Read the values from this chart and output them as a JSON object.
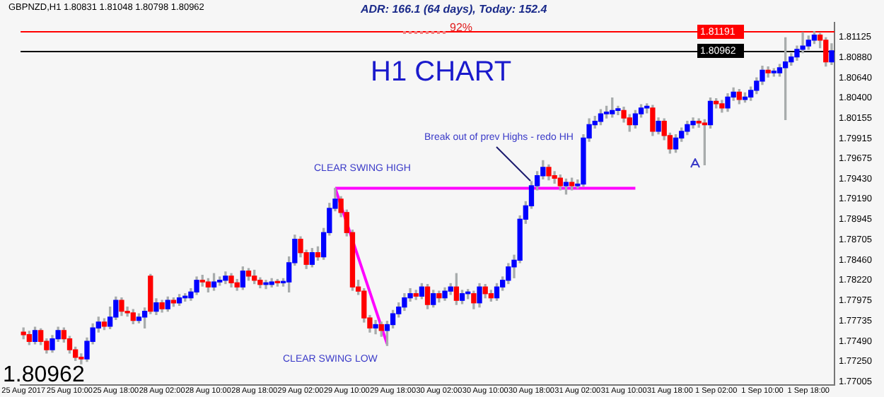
{
  "chart_data": {
    "type": "candlestick",
    "title": "H1 CHART",
    "subtitle": "GBPNZD,H1  1.80831 1.81048 1.80798 1.80962",
    "annotations": [
      "ADR: 166.1 (64 days), Today: 152.4",
      "92%",
      "1.80962",
      "CLEAR SWING HIGH",
      "CLEAR SWING LOW",
      "Break out of prev Highs - redo HH"
    ],
    "categories": [
      "25 Aug 2017",
      null,
      null,
      null,
      null,
      null,
      null,
      null,
      "25 Aug 10:00",
      null,
      null,
      null,
      null,
      null,
      null,
      null,
      "25 Aug 18:00",
      null,
      null,
      null,
      null,
      null,
      null,
      null,
      "28 Aug 02:00",
      null,
      null,
      null,
      null,
      null,
      null,
      null,
      "28 Aug 10:00",
      null,
      null,
      null,
      null,
      null,
      null,
      null,
      "28 Aug 18:00",
      null,
      null,
      null,
      null,
      null,
      null,
      null,
      "29 Aug 02:00",
      null,
      null,
      null,
      null,
      null,
      null,
      null,
      "29 Aug 10:00",
      null,
      null,
      null,
      null,
      null,
      null,
      null,
      "29 Aug 18:00",
      null,
      null,
      null,
      null,
      null,
      null,
      null,
      "30 Aug 02:00",
      null,
      null,
      null,
      null,
      null,
      null,
      null,
      "30 Aug 10:00",
      null,
      null,
      null,
      null,
      null,
      null,
      null,
      "30 Aug 18:00",
      null,
      null,
      null,
      null,
      null,
      null,
      null,
      "31 Aug 02:00",
      null,
      null,
      null,
      null,
      null,
      null,
      null,
      "31 Aug 10:00",
      null,
      null,
      null,
      null,
      null,
      null,
      null,
      "31 Aug 18:00",
      null,
      null,
      null,
      null,
      null,
      null,
      null,
      "1 Sep 02:00",
      null,
      null,
      null,
      null,
      null,
      null,
      null,
      "1 Sep 10:00",
      null,
      null,
      null,
      null,
      null,
      null,
      null,
      "1 Sep 18:00",
      null,
      null,
      null,
      null
    ],
    "ohlc": [
      [
        1.776,
        1.7765,
        1.7752,
        1.7757
      ],
      [
        1.7757,
        1.7761,
        1.7745,
        1.7749
      ],
      [
        1.7749,
        1.7766,
        1.7746,
        1.7762
      ],
      [
        1.7762,
        1.7764,
        1.7745,
        1.7749
      ],
      [
        1.7749,
        1.7752,
        1.7735,
        1.7739
      ],
      [
        1.7739,
        1.7756,
        1.7736,
        1.7752
      ],
      [
        1.7752,
        1.7766,
        1.7749,
        1.7762
      ],
      [
        1.7762,
        1.7765,
        1.7748,
        1.7752
      ],
      [
        1.7752,
        1.7755,
        1.7735,
        1.7739
      ],
      [
        1.7739,
        1.7742,
        1.7726,
        1.773
      ],
      [
        1.773,
        1.7734,
        1.7722,
        1.7728
      ],
      [
        1.7728,
        1.7753,
        1.7725,
        1.7749
      ],
      [
        1.7749,
        1.777,
        1.7746,
        1.7765
      ],
      [
        1.7765,
        1.7778,
        1.776,
        1.7772
      ],
      [
        1.7772,
        1.7776,
        1.7763,
        1.7767
      ],
      [
        1.7767,
        1.779,
        1.7764,
        1.7778
      ],
      [
        1.7778,
        1.7802,
        1.7775,
        1.7798
      ],
      [
        1.7798,
        1.7801,
        1.778,
        1.7785
      ],
      [
        1.7785,
        1.779,
        1.7779,
        1.7783
      ],
      [
        1.7783,
        1.7787,
        1.777,
        1.7774
      ],
      [
        1.7774,
        1.7782,
        1.7771,
        1.7778
      ],
      [
        1.7778,
        1.7789,
        1.7765,
        1.7785
      ],
      [
        1.7827,
        1.7829,
        1.7782,
        1.7785
      ],
      [
        1.7785,
        1.78,
        1.7781,
        1.7795
      ],
      [
        1.7795,
        1.7798,
        1.7784,
        1.7788
      ],
      [
        1.7788,
        1.7802,
        1.7785,
        1.7798
      ],
      [
        1.7798,
        1.7801,
        1.7791,
        1.7795
      ],
      [
        1.7795,
        1.7805,
        1.7792,
        1.7801
      ],
      [
        1.7801,
        1.7806,
        1.7797,
        1.7803
      ],
      [
        1.7801,
        1.7812,
        1.7798,
        1.7808
      ],
      [
        1.7808,
        1.7826,
        1.7805,
        1.7822
      ],
      [
        1.7822,
        1.7828,
        1.7815,
        1.782
      ],
      [
        1.782,
        1.7824,
        1.7808,
        1.7814
      ],
      [
        1.7814,
        1.783,
        1.781,
        1.782
      ],
      [
        1.782,
        1.7826,
        1.7816,
        1.7822
      ],
      [
        1.7822,
        1.7832,
        1.7818,
        1.7827
      ],
      [
        1.7827,
        1.783,
        1.7814,
        1.7819
      ],
      [
        1.7819,
        1.7823,
        1.781,
        1.7814
      ],
      [
        1.7814,
        1.7838,
        1.7811,
        1.7833
      ],
      [
        1.7833,
        1.7836,
        1.7822,
        1.7827
      ],
      [
        1.7827,
        1.7834,
        1.7818,
        1.7822
      ],
      [
        1.7822,
        1.7825,
        1.7813,
        1.7817
      ],
      [
        1.7817,
        1.7822,
        1.7812,
        1.7819
      ],
      [
        1.7817,
        1.7824,
        1.7814,
        1.782
      ],
      [
        1.782,
        1.7823,
        1.7815,
        1.7819
      ],
      [
        1.7819,
        1.7824,
        1.7815,
        1.782
      ],
      [
        1.782,
        1.785,
        1.7808,
        1.7843
      ],
      [
        1.7843,
        1.7876,
        1.784,
        1.7871
      ],
      [
        1.7871,
        1.7874,
        1.785,
        1.7855
      ],
      [
        1.7855,
        1.7858,
        1.7836,
        1.7841
      ],
      [
        1.7841,
        1.786,
        1.7838,
        1.7855
      ],
      [
        1.7855,
        1.7862,
        1.7846,
        1.785
      ],
      [
        1.785,
        1.7884,
        1.7847,
        1.7879
      ],
      [
        1.7879,
        1.7914,
        1.7876,
        1.7908
      ],
      [
        1.7908,
        1.7932,
        1.7905,
        1.7919
      ],
      [
        1.7919,
        1.7922,
        1.7898,
        1.7903
      ],
      [
        1.7903,
        1.7906,
        1.7875,
        1.7879
      ],
      [
        1.7879,
        1.7882,
        1.781,
        1.7814
      ],
      [
        1.7814,
        1.7822,
        1.7805,
        1.7809
      ],
      [
        1.7809,
        1.7812,
        1.7772,
        1.7777
      ],
      [
        1.7777,
        1.778,
        1.776,
        1.7765
      ],
      [
        1.7765,
        1.7774,
        1.7758,
        1.7769
      ],
      [
        1.7769,
        1.7772,
        1.7755,
        1.7762
      ],
      [
        1.7762,
        1.7773,
        1.7744,
        1.7769
      ],
      [
        1.7769,
        1.7786,
        1.7765,
        1.7782
      ],
      [
        1.7782,
        1.7795,
        1.7778,
        1.779
      ],
      [
        1.779,
        1.7806,
        1.7786,
        1.7801
      ],
      [
        1.7801,
        1.7812,
        1.7797,
        1.7806
      ],
      [
        1.7806,
        1.781,
        1.7799,
        1.7803
      ],
      [
        1.7803,
        1.7818,
        1.78,
        1.7814
      ],
      [
        1.7814,
        1.7817,
        1.7788,
        1.7793
      ],
      [
        1.7793,
        1.781,
        1.779,
        1.7806
      ],
      [
        1.7806,
        1.7809,
        1.7796,
        1.7801
      ],
      [
        1.7801,
        1.7813,
        1.7798,
        1.7809
      ],
      [
        1.7809,
        1.7818,
        1.7805,
        1.7814
      ],
      [
        1.7814,
        1.783,
        1.7793,
        1.7798
      ],
      [
        1.7798,
        1.781,
        1.7794,
        1.7806
      ],
      [
        1.7806,
        1.7811,
        1.78,
        1.7808
      ],
      [
        1.7806,
        1.7809,
        1.7788,
        1.7795
      ],
      [
        1.7795,
        1.7818,
        1.779,
        1.7814
      ],
      [
        1.7814,
        1.7817,
        1.7801,
        1.7806
      ],
      [
        1.7806,
        1.781,
        1.7797,
        1.7801
      ],
      [
        1.7801,
        1.7818,
        1.7798,
        1.7814
      ],
      [
        1.7814,
        1.7826,
        1.781,
        1.7822
      ],
      [
        1.7822,
        1.7842,
        1.7818,
        1.7838
      ],
      [
        1.7838,
        1.7852,
        1.7825,
        1.7846
      ],
      [
        1.7846,
        1.7899,
        1.7843,
        1.7895
      ],
      [
        1.7895,
        1.7916,
        1.789,
        1.7911
      ],
      [
        1.7911,
        1.794,
        1.7908,
        1.7935
      ],
      [
        1.7935,
        1.7952,
        1.793,
        1.7947
      ],
      [
        1.7947,
        1.7965,
        1.7943,
        1.7957
      ],
      [
        1.7957,
        1.796,
        1.7942,
        1.7947
      ],
      [
        1.7947,
        1.7952,
        1.7938,
        1.7944
      ],
      [
        1.7944,
        1.7948,
        1.793,
        1.7935
      ],
      [
        1.7935,
        1.7943,
        1.7925,
        1.7939
      ],
      [
        1.7939,
        1.7944,
        1.793,
        1.7935
      ],
      [
        1.7935,
        1.7942,
        1.7932,
        1.7937
      ],
      [
        1.7937,
        1.7996,
        1.7934,
        1.7992
      ],
      [
        1.7992,
        1.8015,
        1.7988,
        1.8008
      ],
      [
        1.8008,
        1.8018,
        1.8004,
        1.8012
      ],
      [
        1.8012,
        1.8026,
        1.8008,
        1.8021
      ],
      [
        1.8021,
        1.803,
        1.8016,
        1.8023
      ],
      [
        1.8021,
        1.804,
        1.8017,
        1.8025
      ],
      [
        1.8025,
        1.803,
        1.802,
        1.8027
      ],
      [
        1.8025,
        1.8029,
        1.8011,
        1.8016
      ],
      [
        1.8016,
        1.802,
        1.8,
        1.8008
      ],
      [
        1.8008,
        1.8025,
        1.8004,
        1.8021
      ],
      [
        1.8021,
        1.8032,
        1.8017,
        1.8028
      ],
      [
        1.8028,
        1.8033,
        1.8022,
        1.803
      ],
      [
        1.8028,
        1.8031,
        1.7995,
        1.8
      ],
      [
        1.8,
        1.8016,
        1.7997,
        1.8012
      ],
      [
        1.8012,
        1.8015,
        1.799,
        1.7995
      ],
      [
        1.7995,
        1.7998,
        1.7974,
        1.7979
      ],
      [
        1.7979,
        1.7996,
        1.7975,
        1.7992
      ],
      [
        1.7992,
        1.8004,
        1.7988,
        1.8
      ],
      [
        1.8,
        1.8012,
        1.7996,
        1.8008
      ],
      [
        1.8008,
        1.8016,
        1.8004,
        1.8012
      ],
      [
        1.8012,
        1.8015,
        1.8005,
        1.801
      ],
      [
        1.801,
        1.8014,
        1.796,
        1.8008
      ],
      [
        1.8008,
        1.804,
        1.8004,
        1.8036
      ],
      [
        1.8036,
        1.8039,
        1.8028,
        1.8033
      ],
      [
        1.8033,
        1.8037,
        1.8023,
        1.8028
      ],
      [
        1.8028,
        1.8045,
        1.8024,
        1.8041
      ],
      [
        1.8041,
        1.8052,
        1.8037,
        1.8047
      ],
      [
        1.8047,
        1.805,
        1.8033,
        1.8038
      ],
      [
        1.8038,
        1.8046,
        1.8035,
        1.8041
      ],
      [
        1.8041,
        1.8053,
        1.8037,
        1.8049
      ],
      [
        1.8049,
        1.8064,
        1.8045,
        1.806
      ],
      [
        1.806,
        1.8078,
        1.8056,
        1.8073
      ],
      [
        1.8073,
        1.8077,
        1.8065,
        1.807
      ],
      [
        1.807,
        1.8075,
        1.8066,
        1.8072
      ],
      [
        1.807,
        1.808,
        1.8066,
        1.8076
      ],
      [
        1.8076,
        1.8112,
        1.8014,
        1.8083
      ],
      [
        1.8083,
        1.8093,
        1.8079,
        1.8089
      ],
      [
        1.8089,
        1.8102,
        1.8085,
        1.8098
      ],
      [
        1.8098,
        1.8118,
        1.8094,
        1.8102
      ],
      [
        1.8102,
        1.8114,
        1.8098,
        1.8109
      ],
      [
        1.8109,
        1.8119,
        1.8105,
        1.8115
      ],
      [
        1.8115,
        1.8117,
        1.81,
        1.8109
      ],
      [
        1.8109,
        1.8112,
        1.8078,
        1.8083
      ],
      [
        1.80831,
        1.81048,
        1.80798,
        1.80962
      ]
    ],
    "colors": [
      "#ff0000",
      "#ff0000",
      "#0000ff",
      "#ff0000",
      "#ff0000",
      "#0000ff",
      "#0000ff",
      "#ff0000",
      "#ff0000",
      "#ff0000",
      "#ff0000",
      "#0000ff",
      "#0000ff",
      "#0000ff",
      "#ff0000",
      "#0000ff",
      "#0000ff",
      "#ff0000",
      "#ff0000",
      "#ff0000",
      "#0000ff",
      "#0000ff",
      "#ff0000",
      "#0000ff",
      "#ff0000",
      "#0000ff",
      "#ff0000",
      "#0000ff",
      "#0000ff",
      "#0000ff",
      "#0000ff",
      "#ff0000",
      "#ff0000",
      "#0000ff",
      "#0000ff",
      "#0000ff",
      "#ff0000",
      "#ff0000",
      "#0000ff",
      "#ff0000",
      "#ff0000",
      "#ff0000",
      "#0000ff",
      "#0000ff",
      "#ff0000",
      "#0000ff",
      "#0000ff",
      "#0000ff",
      "#ff0000",
      "#ff0000",
      "#0000ff",
      "#ff0000",
      "#0000ff",
      "#0000ff",
      "#0000ff",
      "#ff0000",
      "#ff0000",
      "#ff0000",
      "#ff0000",
      "#ff0000",
      "#ff0000",
      "#0000ff",
      "#ff0000",
      "#0000ff",
      "#0000ff",
      "#0000ff",
      "#0000ff",
      "#0000ff",
      "#ff0000",
      "#0000ff",
      "#ff0000",
      "#0000ff",
      "#ff0000",
      "#0000ff",
      "#0000ff",
      "#ff0000",
      "#0000ff",
      "#0000ff",
      "#ff0000",
      "#0000ff",
      "#ff0000",
      "#ff0000",
      "#0000ff",
      "#0000ff",
      "#0000ff",
      "#0000ff",
      "#0000ff",
      "#0000ff",
      "#0000ff",
      "#0000ff",
      "#0000ff",
      "#ff0000",
      "#ff0000",
      "#ff0000",
      "#0000ff",
      "#ff0000",
      "#0000ff",
      "#0000ff",
      "#0000ff",
      "#0000ff",
      "#0000ff",
      "#0000ff",
      "#0000ff",
      "#0000ff",
      "#ff0000",
      "#ff0000",
      "#0000ff",
      "#0000ff",
      "#0000ff",
      "#ff0000",
      "#0000ff",
      "#ff0000",
      "#ff0000",
      "#0000ff",
      "#0000ff",
      "#0000ff",
      "#0000ff",
      "#ff0000",
      "#ff0000",
      "#0000ff",
      "#ff0000",
      "#ff0000",
      "#0000ff",
      "#0000ff",
      "#ff0000",
      "#0000ff",
      "#0000ff",
      "#0000ff",
      "#0000ff",
      "#ff0000",
      "#0000ff",
      "#0000ff",
      "#0000ff",
      "#0000ff",
      "#0000ff",
      "#0000ff",
      "#0000ff",
      "#0000ff",
      "#ff0000",
      "#ff0000",
      "#0000ff"
    ],
    "series": [
      {
        "type": "line",
        "color": "#ff00ff",
        "values": [
          null,
          null,
          null,
          null,
          null,
          null,
          null,
          null,
          null,
          null,
          null,
          null,
          null,
          null,
          null,
          null,
          null,
          null,
          null,
          null,
          null,
          null,
          null,
          null,
          null,
          null,
          null,
          null,
          null,
          null,
          null,
          null,
          null,
          null,
          null,
          null,
          null,
          null,
          null,
          null,
          null,
          null,
          null,
          null,
          null,
          null,
          null,
          null,
          null,
          null,
          null,
          null,
          null,
          null,
          1.7932,
          null,
          null,
          null,
          null,
          null,
          null,
          null,
          null,
          null,
          null,
          null,
          null,
          null,
          null,
          null,
          null,
          null,
          null,
          null,
          null,
          null,
          null,
          null,
          null,
          null,
          null,
          null,
          null,
          null,
          null,
          null,
          null,
          null,
          null,
          null,
          null,
          null,
          null,
          null,
          null,
          null,
          null,
          null,
          null,
          null,
          null,
          null,
          null,
          null,
          null,
          null,
          1.7932,
          null,
          null,
          null,
          null,
          null,
          null,
          null,
          null,
          null,
          null,
          null,
          null,
          null,
          null,
          null,
          null,
          null,
          null,
          null,
          null,
          null,
          null,
          null,
          null,
          null,
          null,
          null,
          null,
          null,
          null,
          null,
          null,
          null,
          null
        ]
      },
      {
        "type": "line",
        "color": "#ff00ff",
        "values": [
          null,
          null,
          null,
          null,
          null,
          null,
          null,
          null,
          null,
          null,
          null,
          null,
          null,
          null,
          null,
          null,
          null,
          null,
          null,
          null,
          null,
          null,
          null,
          null,
          null,
          null,
          null,
          null,
          null,
          null,
          null,
          null,
          null,
          null,
          null,
          null,
          null,
          null,
          null,
          null,
          null,
          null,
          null,
          null,
          null,
          null,
          null,
          null,
          null,
          null,
          null,
          null,
          null,
          null,
          1.7932,
          null,
          null,
          null,
          null,
          null,
          null,
          null,
          null,
          1.7746,
          null,
          null,
          null,
          null,
          null,
          null,
          null,
          null,
          null,
          null,
          null,
          null,
          null,
          null,
          null,
          null,
          null,
          null,
          null,
          null,
          null,
          null,
          null,
          null,
          null,
          null,
          null,
          null,
          null,
          null,
          null,
          null,
          null,
          null,
          null,
          null,
          null,
          null,
          null,
          null,
          null,
          null,
          null,
          null,
          null,
          null,
          null,
          null,
          null,
          null,
          null,
          null,
          null,
          null,
          null,
          null,
          null,
          null,
          null,
          null,
          null,
          null,
          null,
          null,
          null,
          null,
          null,
          null,
          null,
          null,
          null,
          null,
          null,
          null,
          null,
          null,
          null
        ]
      }
    ],
    "ylim": [
      1.7697,
      1.813
    ],
    "yticks": [
      1.81125,
      {
        "value": 1.8088,
        "label": "1.80880"
      },
      {
        "value": 1.8064,
        "label": "1.80640"
      },
      {
        "value": 1.804,
        "label": "1.80400"
      },
      1.80155,
      1.79915,
      1.79675,
      {
        "value": 1.7943,
        "label": "1.79430"
      },
      {
        "value": 1.7919,
        "label": "1.79190"
      },
      1.78945,
      1.78705,
      {
        "value": 1.7846,
        "label": "1.78460"
      },
      {
        "value": 1.7822,
        "label": "1.78220"
      },
      1.77975,
      1.77735,
      {
        "value": 1.7749,
        "label": "1.77490"
      },
      {
        "value": 1.7725,
        "label": "1.77250"
      },
      1.77005
    ],
    "ref_lines": [
      {
        "axis": "y",
        "value": 1.81191,
        "label": "1.81191",
        "color": "#ff0000",
        "line_style": "solid"
      },
      {
        "axis": "y",
        "value": 1.80962,
        "label": "1.80962",
        "color": "#000000",
        "line_style": "solid"
      }
    ]
  }
}
